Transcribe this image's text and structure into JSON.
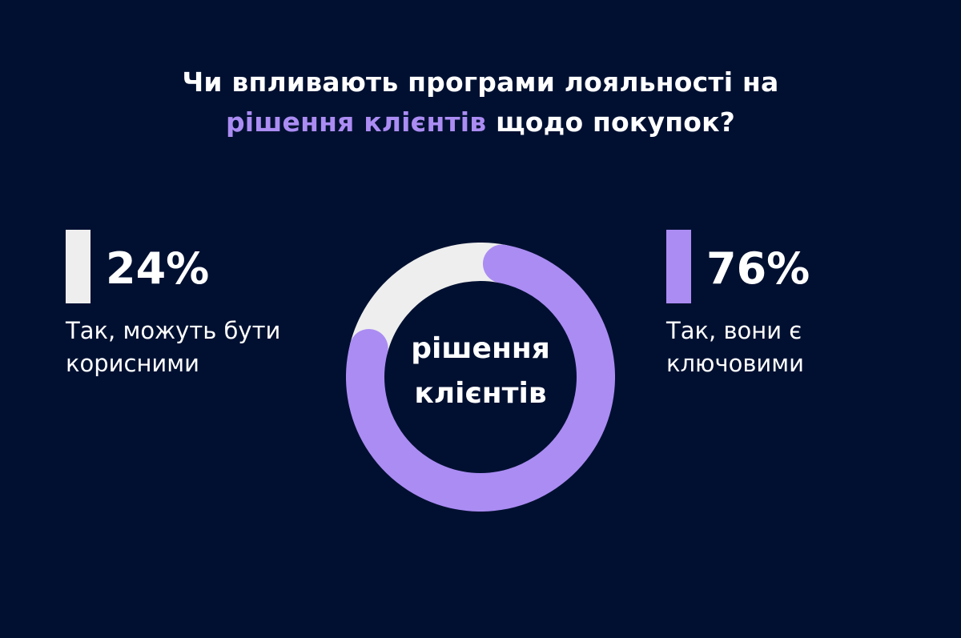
{
  "colors": {
    "background": "#011031",
    "accent": "#ab8cf3",
    "light": "#eeeeee",
    "text": "#ffffff"
  },
  "title": {
    "line1": "Чи впливають програми лояльності на",
    "line2_accent": "рішення клієнтів",
    "line2_rest": " щодо покупок?"
  },
  "center_label": {
    "line1": "рішення",
    "line2": "клієнтів"
  },
  "stats": {
    "left": {
      "value": "24%",
      "label_line1": "Так, можуть бути",
      "label_line2": "корисними"
    },
    "right": {
      "value": "76%",
      "label_line1": "Так, вони є",
      "label_line2": "ключовими"
    }
  },
  "chart_data": {
    "type": "pie",
    "variant": "donut",
    "title": "Чи впливають програми лояльності на рішення клієнтів щодо покупок?",
    "center_text": "рішення клієнтів",
    "slices": [
      {
        "label": "Так, вони є ключовими",
        "value": 76,
        "color": "#ab8cf3"
      },
      {
        "label": "Так, можуть бути корисними",
        "value": 24,
        "color": "#eeeeee"
      }
    ],
    "unit": "%"
  }
}
